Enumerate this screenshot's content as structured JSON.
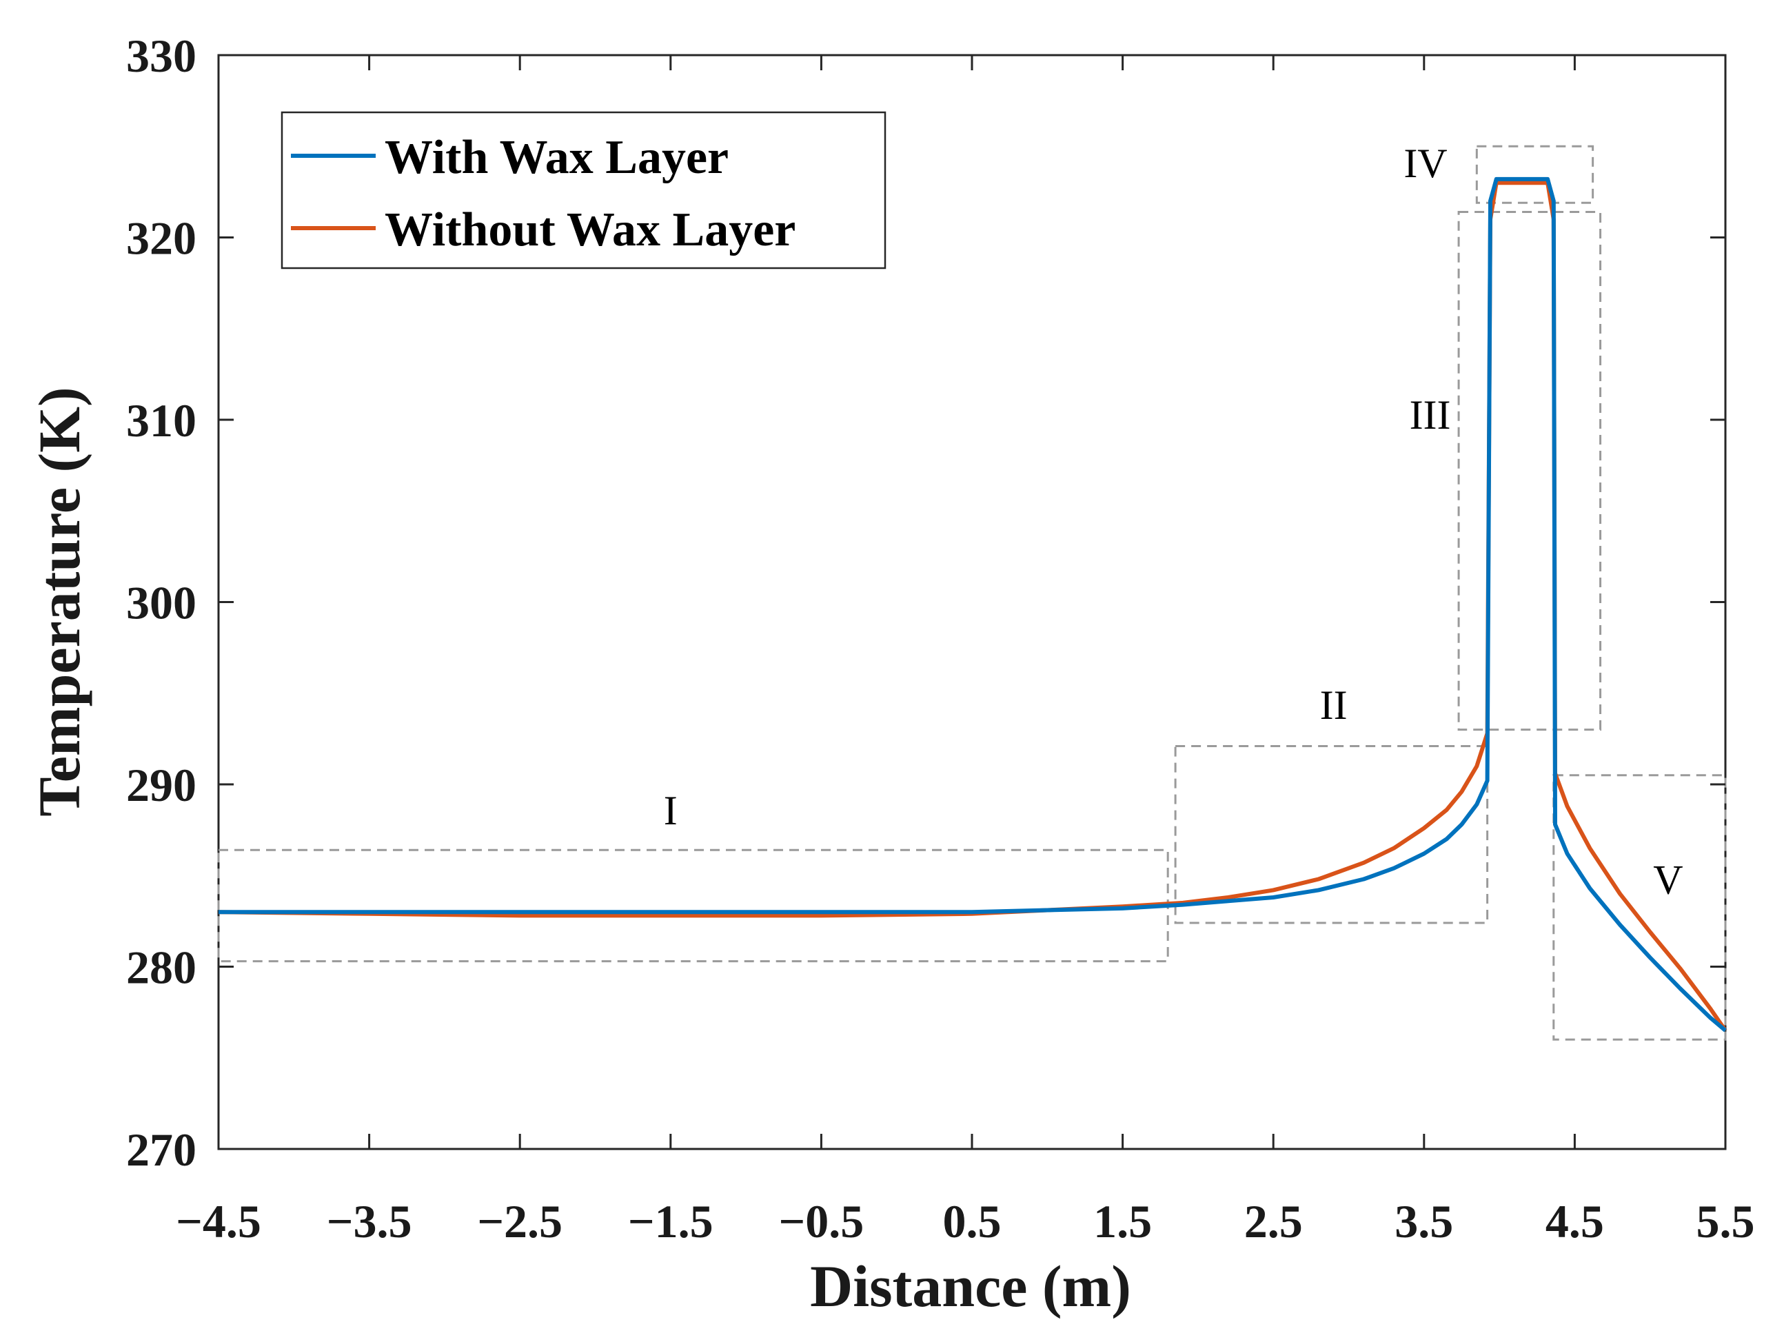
{
  "chart_data": {
    "type": "line",
    "title": "",
    "xlabel": "Distance (m)",
    "ylabel": "Temperature (K)",
    "xlim": [
      -4.5,
      5.5
    ],
    "ylim": [
      270,
      330
    ],
    "xticks": [
      -4.5,
      -3.5,
      -2.5,
      -1.5,
      -0.5,
      0.5,
      1.5,
      2.5,
      3.5,
      4.5,
      5.5
    ],
    "xtick_labels": [
      "−4.5",
      "−3.5",
      "−2.5",
      "−1.5",
      "−0.5",
      "0.5",
      "1.5",
      "2.5",
      "3.5",
      "4.5",
      "5.5"
    ],
    "yticks": [
      270,
      280,
      290,
      300,
      310,
      320,
      330
    ],
    "ytick_labels": [
      "270",
      "280",
      "290",
      "300",
      "310",
      "320",
      "330"
    ],
    "grid": false,
    "legend_position": "top-left",
    "series": [
      {
        "name": "With Wax Layer",
        "color": "#0072BD",
        "x": [
          -4.5,
          -3.5,
          -2.5,
          -1.5,
          -0.5,
          0.5,
          1.0,
          1.5,
          1.9,
          2.2,
          2.5,
          2.8,
          3.1,
          3.3,
          3.5,
          3.65,
          3.75,
          3.85,
          3.92,
          3.94,
          3.98,
          4.32,
          4.36,
          4.37,
          4.45,
          4.6,
          4.8,
          5.0,
          5.2,
          5.4,
          5.5
        ],
        "y": [
          283.0,
          283.0,
          283.0,
          283.0,
          283.0,
          283.0,
          283.1,
          283.2,
          283.4,
          283.6,
          283.8,
          284.2,
          284.8,
          285.4,
          286.2,
          287.0,
          287.8,
          288.9,
          290.2,
          322.0,
          323.2,
          323.2,
          322.0,
          287.8,
          286.2,
          284.3,
          282.3,
          280.5,
          278.8,
          277.2,
          276.5
        ]
      },
      {
        "name": "Without Wax Layer",
        "color": "#D95319",
        "x": [
          -4.5,
          -3.5,
          -2.5,
          -1.5,
          -0.5,
          0.5,
          1.0,
          1.5,
          1.9,
          2.2,
          2.5,
          2.8,
          3.1,
          3.3,
          3.5,
          3.65,
          3.75,
          3.85,
          3.92,
          3.94,
          3.98,
          4.32,
          4.36,
          4.37,
          4.45,
          4.6,
          4.8,
          5.0,
          5.2,
          5.4,
          5.5
        ],
        "y": [
          283.0,
          282.9,
          282.8,
          282.8,
          282.8,
          282.9,
          283.1,
          283.3,
          283.5,
          283.8,
          284.2,
          284.8,
          285.7,
          286.5,
          287.6,
          288.6,
          289.6,
          291.0,
          292.8,
          321.0,
          323.0,
          323.0,
          321.0,
          290.6,
          288.8,
          286.5,
          284.0,
          281.9,
          279.9,
          277.7,
          276.5
        ]
      }
    ],
    "regions": [
      {
        "label": "I",
        "x_range": [
          -4.5,
          1.8
        ],
        "y_range": [
          280.3,
          286.4
        ],
        "label_at": [
          -1.5,
          287.8
        ]
      },
      {
        "label": "II",
        "x_range": [
          1.85,
          3.92
        ],
        "y_range": [
          282.4,
          292.1
        ],
        "label_at": [
          2.9,
          293.6
        ]
      },
      {
        "label": "III",
        "x_range": [
          3.73,
          4.67
        ],
        "y_range": [
          293.0,
          321.4
        ],
        "label_at": [
          3.54,
          309.5
        ]
      },
      {
        "label": "IV",
        "x_range": [
          3.85,
          4.62
        ],
        "y_range": [
          321.9,
          325.0
        ],
        "label_at": [
          3.51,
          323.3
        ]
      },
      {
        "label": "V",
        "x_range": [
          4.36,
          5.5
        ],
        "y_range": [
          276.0,
          290.5
        ],
        "label_at": [
          5.12,
          284.0
        ]
      }
    ]
  }
}
